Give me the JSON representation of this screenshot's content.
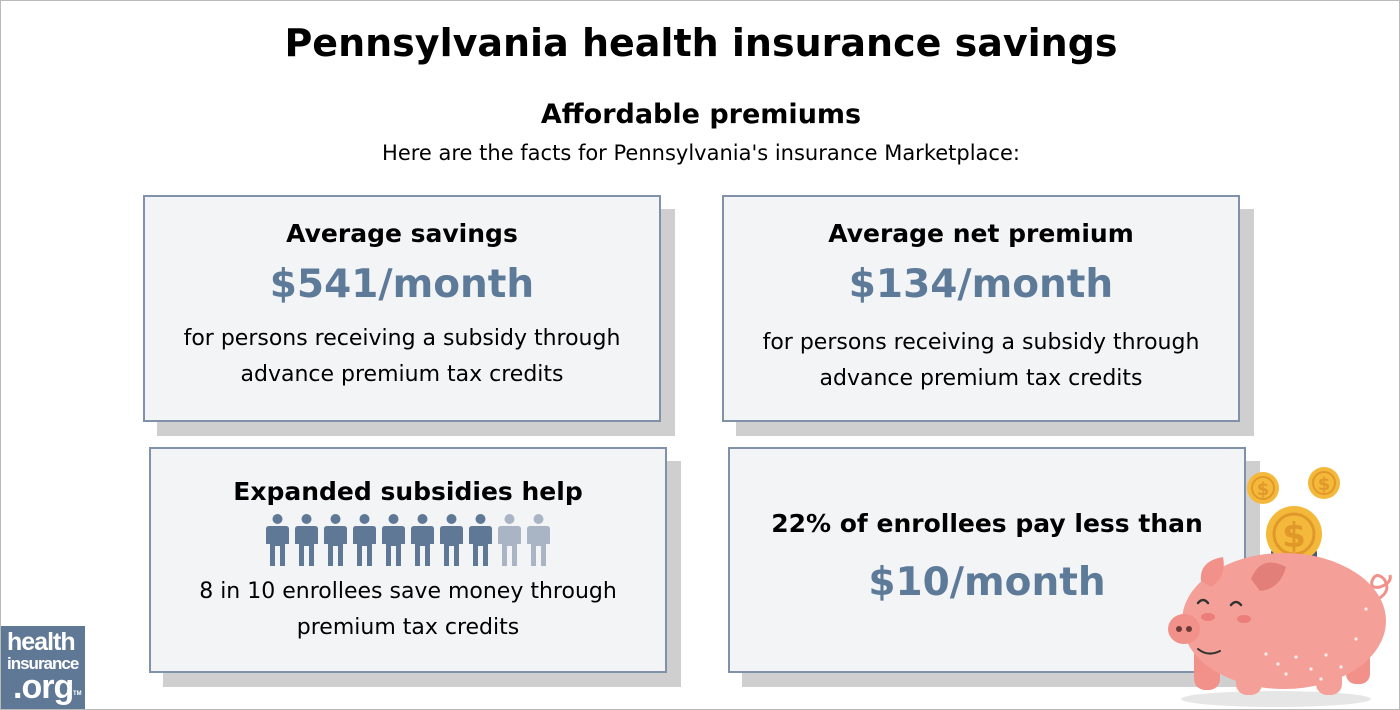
{
  "page": {
    "title": "Pennsylvania health insurance savings",
    "subtitle": "Affordable premiums",
    "intro": "Here are the facts for Pennsylvania's insurance Marketplace:"
  },
  "cards": [
    {
      "heading": "Average savings",
      "value": "$541/month",
      "description_line1": "for persons receiving a subsidy through",
      "description_line2": "advance premium tax credits"
    },
    {
      "heading": "Average net premium",
      "value": "$134/month",
      "description_line1": "for persons receiving a subsidy through",
      "description_line2": "advance premium tax credits"
    },
    {
      "heading": "Expanded subsidies help",
      "description_line1": "8 in 10 enrollees save money through",
      "description_line2": "premium tax credits",
      "pictogram": {
        "total": 10,
        "highlighted": 8
      }
    },
    {
      "heading": "22% of enrollees pay less than",
      "value": "$10/month"
    }
  ],
  "logo": {
    "line1": "health",
    "line2": "insurance",
    "line3": ".org",
    "trademark": "TM"
  },
  "colors": {
    "accent_value": "#5d7a99",
    "card_border": "#8092aa",
    "card_background": "#f3f4f6",
    "card_shadow": "#cfcfcf",
    "person_dark": "#5f7896",
    "person_light": "#a9b5c4",
    "logo_background": "#5f7896",
    "pig": "#f1918a",
    "coin": "#f4b93a"
  },
  "icons": {
    "person": "person-icon",
    "pig": "piggy-bank-icon",
    "coin": "dollar-coin-icon"
  }
}
